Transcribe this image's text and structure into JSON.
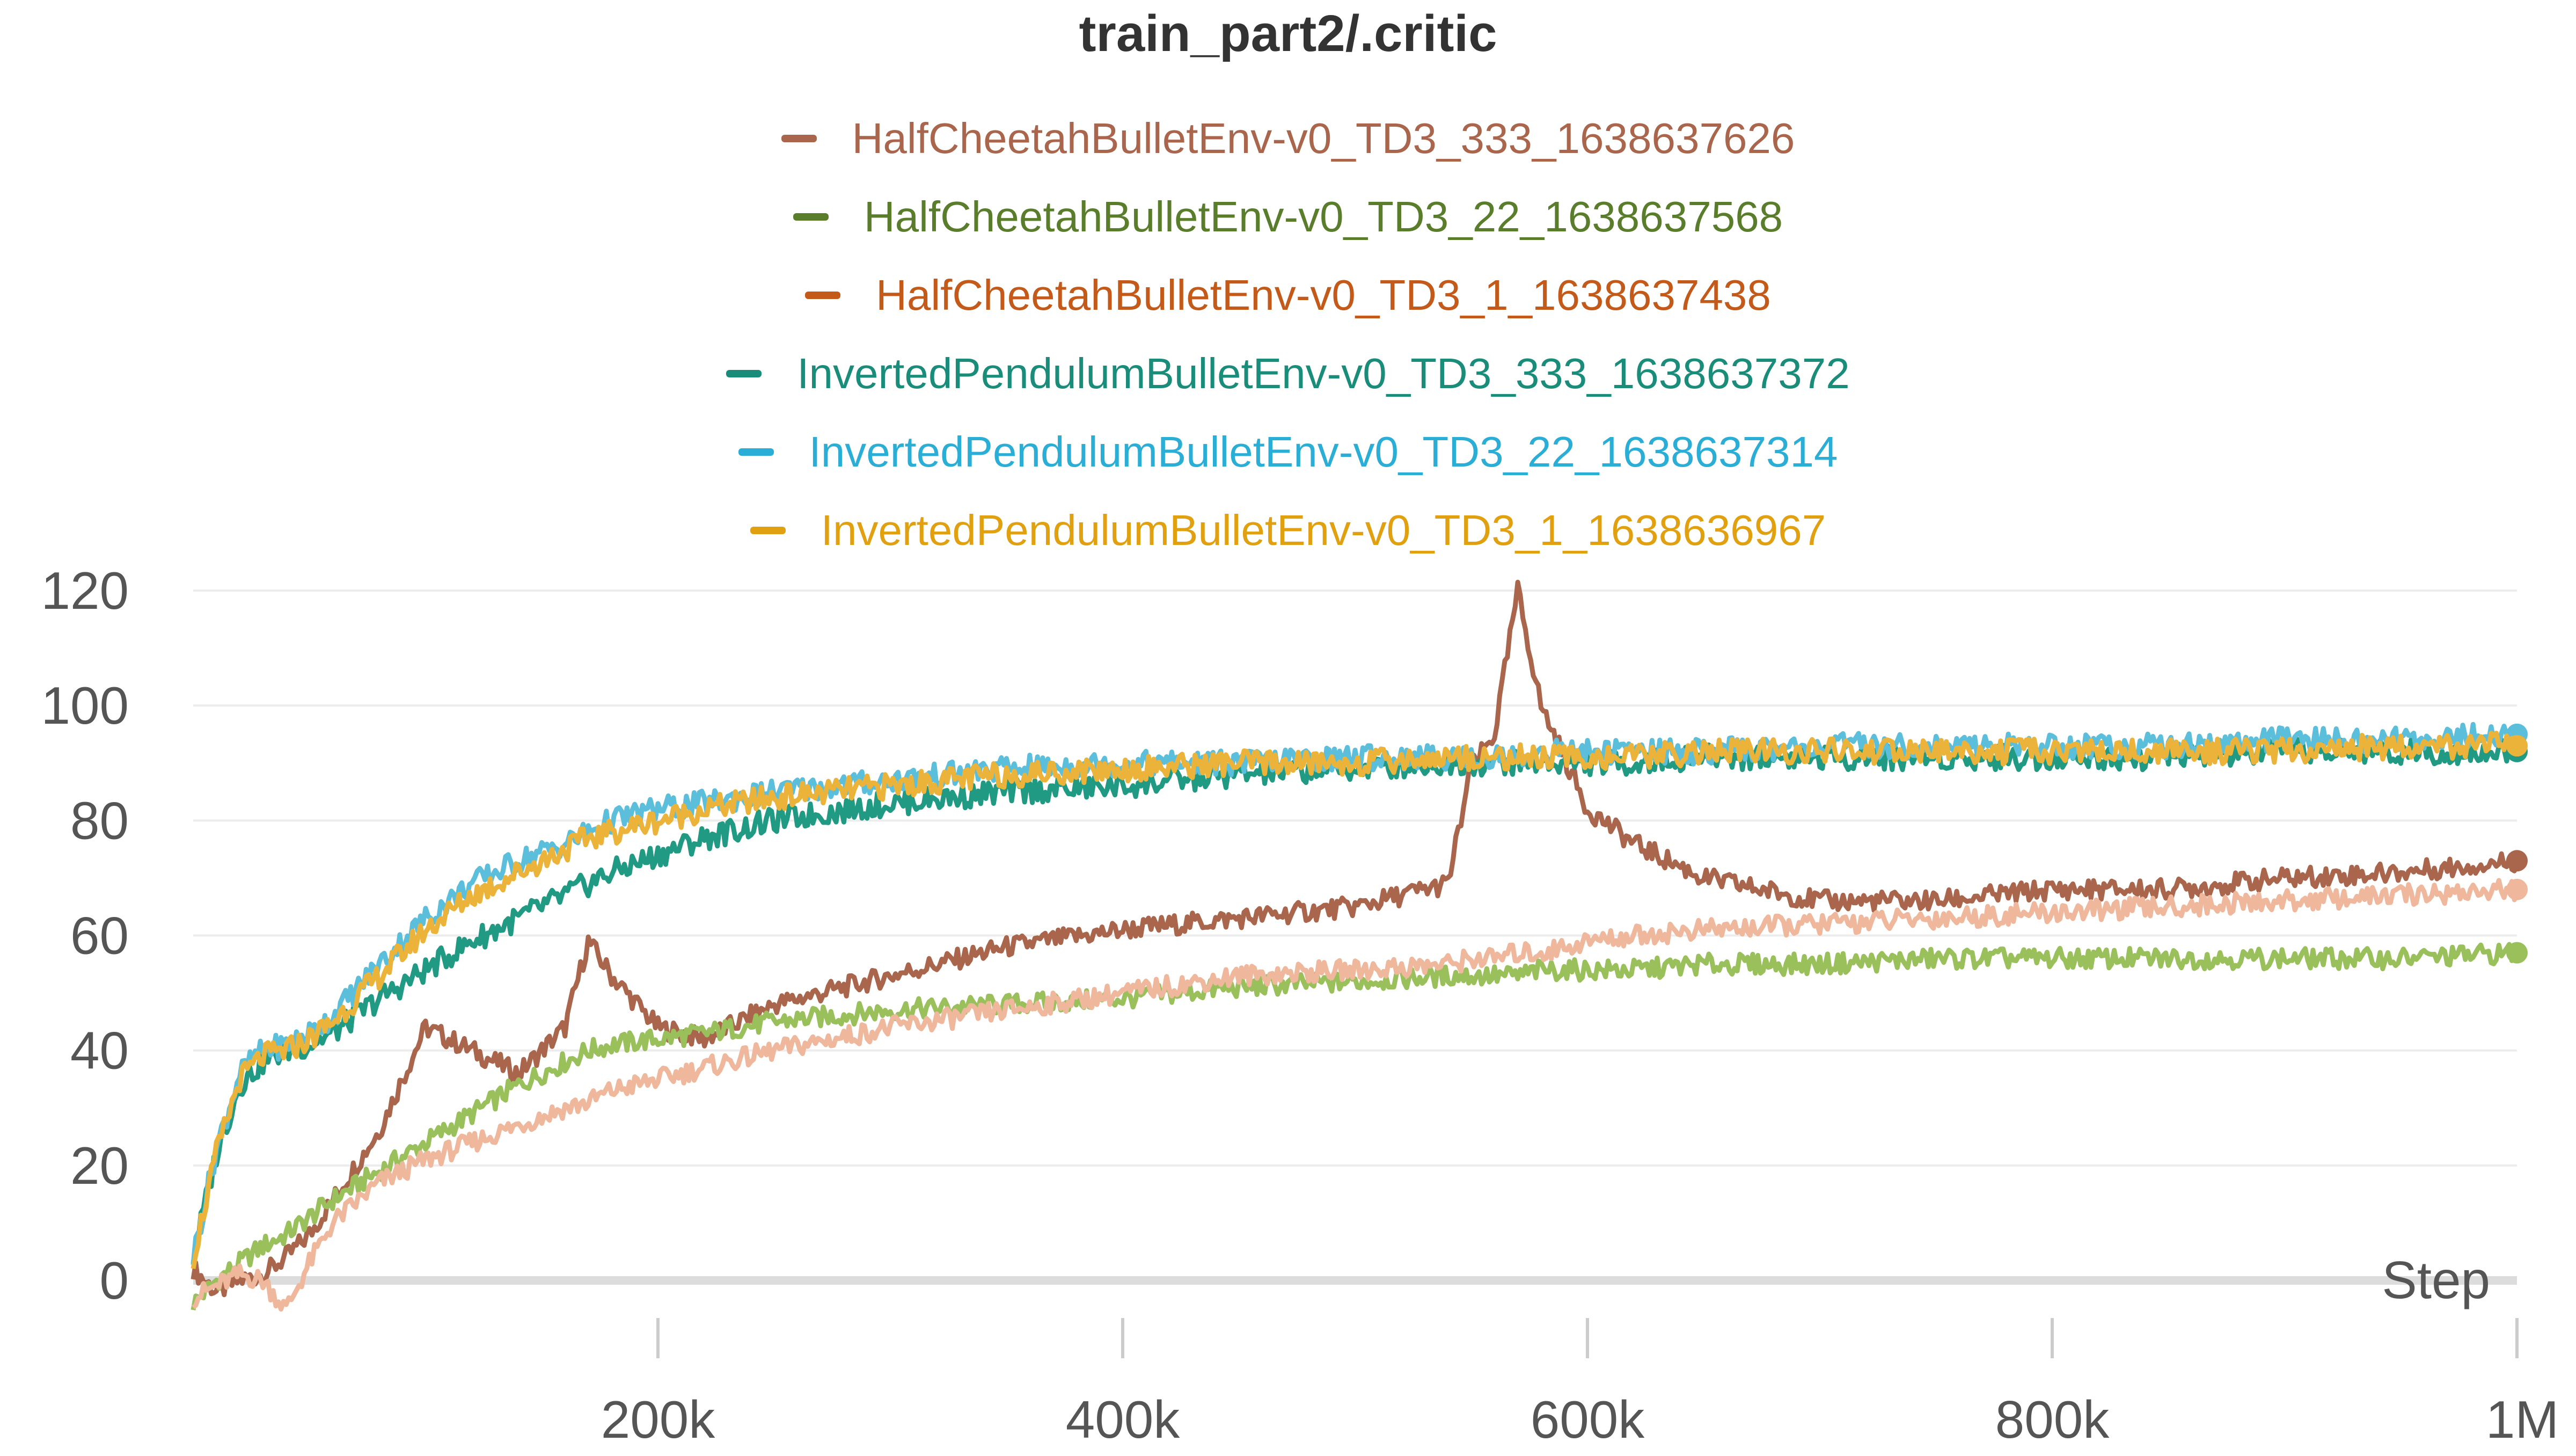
{
  "chart_data": {
    "type": "line",
    "title": "train_part2/.critic",
    "xlabel": "Step",
    "ylabel": "",
    "xlim": [
      0,
      1000000
    ],
    "ylim": [
      -10,
      125
    ],
    "grid": true,
    "legend_position": "top-center",
    "y_ticks": [
      "0",
      "20",
      "40",
      "60",
      "80",
      "100",
      "120"
    ],
    "x_ticks": [
      "200k",
      "400k",
      "600k",
      "800k",
      "1M"
    ],
    "x": [
      0,
      10000,
      20000,
      30000,
      40000,
      50000,
      60000,
      80000,
      100000,
      120000,
      140000,
      160000,
      170000,
      180000,
      200000,
      220000,
      250000,
      300000,
      350000,
      400000,
      450000,
      500000,
      540000,
      550000,
      560000,
      570000,
      580000,
      600000,
      620000,
      650000,
      700000,
      750000,
      800000,
      850000,
      900000,
      950000,
      1000000
    ],
    "series": [
      {
        "name": "HalfCheetahBulletEnv-v0_TD3_333_1638637626",
        "color": "#a9664c",
        "values": [
          2,
          -2,
          0,
          1,
          4,
          8,
          14,
          26,
          44,
          40,
          36,
          44,
          59,
          53,
          44,
          42,
          48,
          53,
          58,
          61,
          63,
          65,
          69,
          89,
          95,
          120,
          100,
          82,
          76,
          70,
          66,
          66,
          68,
          68,
          70,
          71,
          73
        ]
      },
      {
        "name": "HalfCheetahBulletEnv-v0_TD3_22_1638637568",
        "color": "#99c05a",
        "values": [
          -4,
          0,
          3,
          6,
          8,
          11,
          14,
          19,
          24,
          29,
          34,
          38,
          40,
          41,
          42,
          43,
          45,
          47,
          48,
          49,
          51,
          52,
          53,
          53,
          53,
          53,
          54,
          54,
          54,
          55,
          55,
          56,
          56,
          56,
          56,
          56,
          57
        ]
      },
      {
        "name": "HalfCheetahBulletEnv-v0_TD3_1_1638637438",
        "color": "#efb79c",
        "values": [
          -3,
          -1,
          1,
          0,
          -5,
          3,
          10,
          17,
          21,
          24,
          27,
          30,
          31,
          33,
          35,
          37,
          40,
          44,
          47,
          50,
          53,
          54,
          55,
          56,
          56,
          57,
          57,
          59,
          60,
          61,
          62,
          63,
          64,
          65,
          66,
          67,
          68
        ]
      },
      {
        "name": "InvertedPendulumBulletEnv-v0_TD3_333_1638637372",
        "color": "#209a83",
        "values": [
          4,
          22,
          34,
          38,
          40,
          41,
          43,
          49,
          54,
          59,
          63,
          67,
          69,
          71,
          74,
          77,
          80,
          83,
          85,
          86,
          88,
          89,
          90,
          90,
          90,
          90,
          90,
          90,
          90,
          91,
          91,
          91,
          91,
          91,
          92,
          92,
          92
        ]
      },
      {
        "name": "InvertedPendulumBulletEnv-v0_TD3_22_1638637314",
        "color": "#5bbfdc",
        "values": [
          4,
          23,
          36,
          40,
          41,
          43,
          46,
          55,
          63,
          69,
          73,
          76,
          78,
          80,
          82,
          83,
          85,
          87,
          89,
          90,
          90,
          91,
          91,
          91,
          91,
          91,
          92,
          92,
          92,
          92,
          93,
          93,
          93,
          93,
          94,
          94,
          95
        ]
      },
      {
        "name": "InvertedPendulumBulletEnv-v0_TD3_1_1638636967",
        "color": "#ebb339",
        "values": [
          4,
          22,
          35,
          39,
          40,
          42,
          45,
          53,
          61,
          67,
          71,
          75,
          77,
          78,
          80,
          82,
          84,
          86,
          88,
          89,
          90,
          90,
          91,
          91,
          91,
          91,
          91,
          91,
          91,
          92,
          92,
          92,
          92,
          92,
          92,
          93,
          93
        ]
      }
    ],
    "legend_colors": [
      "#a9664c",
      "#5a7d2b",
      "#c45a1a",
      "#1a8c7a",
      "#2aaed6",
      "#e0a010"
    ]
  }
}
